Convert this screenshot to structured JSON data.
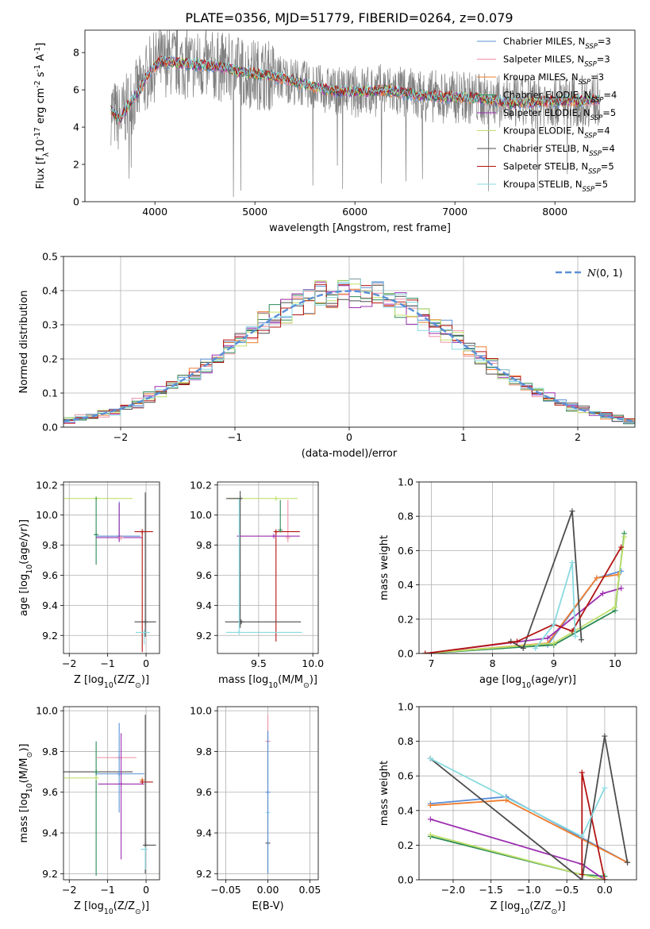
{
  "figure": {
    "title": "PLATE=0356, MJD=51779, FIBERID=0264, z=0.079"
  },
  "colors": {
    "Chabrier MILES": "#5a8fd6",
    "Salpeter MILES": "#ef8fa5",
    "Kroupa MILES": "#ee7d2f",
    "Chabrier ELODIE": "#2e8b57",
    "Salpeter ELODIE": "#9c2fb0",
    "Kroupa ELODIE": "#bfe06a",
    "Chabrier STELIB": "#4d4d4d",
    "Salpeter STELIB": "#b31414",
    "Kroupa STELIB": "#88dae0"
  },
  "chart_data": [
    {
      "id": "spectrum",
      "type": "line",
      "xlabel": "wavelength [Angstrom, rest frame]",
      "ylabel": "Flux [f$_\\lambda$10$^{-17}$ erg cm$^{-2}$ s$^{-1}$ A$^{-1}$]",
      "xlim": [
        3300,
        8800
      ],
      "ylim": [
        0,
        9.2
      ],
      "xticks": [
        4000,
        5000,
        6000,
        7000,
        8000
      ],
      "yticks": [
        0,
        2,
        4,
        6,
        8
      ],
      "grid": false,
      "legend_position": "upper right",
      "legend": [
        {
          "label": "Chabrier MILES, N",
          "sub": "SSP",
          "tail": "=3",
          "model": "Chabrier MILES"
        },
        {
          "label": "Salpeter MILES, N",
          "sub": "SSP",
          "tail": "=3",
          "model": "Salpeter MILES"
        },
        {
          "label": "Kroupa MILES, N",
          "sub": "SSP",
          "tail": "=3",
          "model": "Kroupa MILES"
        },
        {
          "label": "Chabrier ELODIE, N",
          "sub": "SSP",
          "tail": "=4",
          "model": "Chabrier ELODIE"
        },
        {
          "label": "Salpeter ELODIE, N",
          "sub": "SSP",
          "tail": "=5",
          "model": "Salpeter ELODIE"
        },
        {
          "label": "Kroupa ELODIE, N",
          "sub": "SSP",
          "tail": "=4",
          "model": "Kroupa ELODIE"
        },
        {
          "label": "Chabrier STELIB, N",
          "sub": "SSP",
          "tail": "=4",
          "model": "Chabrier STELIB"
        },
        {
          "label": "Salpeter STELIB, N",
          "sub": "SSP",
          "tail": "=5",
          "model": "Salpeter STELIB"
        },
        {
          "label": "Kroupa STELIB, N",
          "sub": "SSP",
          "tail": "=5",
          "model": "Kroupa STELIB"
        }
      ],
      "continuum": {
        "x": [
          3550,
          3650,
          3750,
          3850,
          3950,
          4050,
          4150,
          4300,
          4500,
          4700,
          4900,
          5100,
          5300,
          5500,
          5700,
          5900,
          6100,
          6300,
          6500,
          6700,
          6900,
          7100,
          7300,
          7500,
          7700,
          7900,
          8100,
          8300,
          8450
        ],
        "y": [
          5.0,
          4.4,
          5.3,
          6.0,
          7.0,
          7.5,
          7.5,
          7.4,
          7.3,
          7.2,
          6.9,
          6.8,
          6.6,
          6.3,
          6.0,
          5.9,
          5.9,
          6.0,
          5.8,
          5.7,
          5.6,
          5.6,
          5.5,
          5.3,
          5.3,
          5.4,
          5.4,
          5.4,
          5.5
        ]
      },
      "data_noise_amplitude": 1.6,
      "model_extent": [
        3560,
        8450
      ],
      "data_extent": [
        3560,
        8450
      ]
    },
    {
      "id": "residuals",
      "type": "histogram",
      "xlabel": "(data-model)/error",
      "ylabel": "Normed distribution",
      "xlim": [
        -2.5,
        2.5
      ],
      "ylim": [
        0,
        0.5
      ],
      "xticks": [
        -2,
        -1,
        0,
        1,
        2
      ],
      "yticks": [
        0.0,
        0.1,
        0.2,
        0.3,
        0.4,
        0.5
      ],
      "grid": true,
      "legend_position": "upper right",
      "reference": {
        "label": "N(0,1)",
        "mean": 0,
        "sigma": 1
      },
      "bin_width": 0.1,
      "bin_start": -2.5
    },
    {
      "id": "age-vs-Z",
      "type": "errorbar",
      "xlabel": "Z [log$_{10}$(Z/Z$_\\odot$)]",
      "ylabel": "age  [log$_{10}$(age/yr)]",
      "xlim": [
        -2.15,
        0.35
      ],
      "ylim": [
        9.08,
        10.22
      ],
      "xticks": [
        -2,
        -1,
        0
      ],
      "yticks": [
        9.2,
        9.4,
        9.6,
        9.8,
        10.0,
        10.2
      ],
      "grid": true,
      "points": [
        {
          "model": "Kroupa ELODIE",
          "x": -1.3,
          "xerr": [
            0.95,
            0.95
          ],
          "y": 10.11,
          "yerr": [
            0.0,
            0.0
          ]
        },
        {
          "model": "Chabrier ELODIE",
          "x": -1.3,
          "xerr": [
            0.0,
            0.0
          ],
          "y": 9.87,
          "yerr": [
            0.2,
            0.25
          ]
        },
        {
          "model": "Chabrier MILES",
          "x": -0.7,
          "xerr": [
            0.6,
            0.55
          ],
          "y": 9.86,
          "yerr": [
            0.03,
            0.23
          ]
        },
        {
          "model": "Salpeter ELODIE",
          "x": -0.7,
          "xerr": [
            0.6,
            0.6
          ],
          "y": 9.85,
          "yerr": [
            0.03,
            0.23
          ]
        },
        {
          "model": "Salpeter MILES",
          "x": -0.65,
          "xerr": [
            0.0,
            0.0
          ],
          "y": 9.85,
          "yerr": [
            0.0,
            0.0
          ]
        },
        {
          "model": "Chabrier STELIB",
          "x": -0.02,
          "xerr": [
            0.28,
            0.28
          ],
          "y": 9.29,
          "yerr": [
            0.1,
            0.86
          ]
        },
        {
          "model": "Salpeter STELIB",
          "x": -0.1,
          "xerr": [
            0.2,
            0.28
          ],
          "y": 9.89,
          "yerr": [
            0.8,
            0.0
          ]
        },
        {
          "model": "Kroupa STELIB",
          "x": -0.05,
          "xerr": [
            0.22,
            0.15
          ],
          "y": 9.22,
          "yerr": [
            0.08,
            0.0
          ]
        }
      ]
    },
    {
      "id": "age-vs-mass",
      "type": "errorbar",
      "xlabel": "mass [log$_{10}$(M/M$_\\odot$)]",
      "ylabel": "",
      "xlim": [
        9.12,
        10.05
      ],
      "ylim": [
        9.08,
        10.22
      ],
      "xticks": [
        9.5,
        10.0
      ],
      "yticks": [
        9.2,
        9.4,
        9.6,
        9.8,
        10.0,
        10.2
      ],
      "grid": true,
      "points": [
        {
          "model": "Kroupa ELODIE",
          "x": 9.66,
          "xerr": [
            0.44,
            0.2
          ],
          "y": 10.11,
          "yerr": [
            0.0,
            0.0
          ]
        },
        {
          "model": "Chabrier STELIB",
          "x": 9.33,
          "xerr": [
            0.13,
            0.0
          ],
          "y": 10.11,
          "yerr": [
            0.86,
            0.05
          ]
        },
        {
          "model": "Salpeter MILES",
          "x": 9.77,
          "xerr": [
            0.0,
            0.0
          ],
          "y": 9.85,
          "yerr": [
            0.03,
            0.25
          ]
        },
        {
          "model": "Salpeter STELIB",
          "x": 9.66,
          "xerr": [
            0.0,
            0.22
          ],
          "y": 9.89,
          "yerr": [
            0.73,
            0.0
          ]
        },
        {
          "model": "Salpeter ELODIE",
          "x": 9.64,
          "xerr": [
            0.34,
            0.24
          ],
          "y": 9.86,
          "yerr": [
            0.0,
            0.0
          ]
        },
        {
          "model": "Chabrier ELODIE",
          "x": 9.7,
          "xerr": [
            0.0,
            0.0
          ],
          "y": 9.9,
          "yerr": [
            0.0,
            0.2
          ]
        },
        {
          "model": "Chabrier STELIB",
          "x": 9.34,
          "xerr": [
            0.15,
            0.55
          ],
          "y": 9.29,
          "yerr": [
            0.0,
            0.0
          ]
        },
        {
          "model": "Kroupa STELIB",
          "x": 9.32,
          "xerr": [
            0.12,
            0.58
          ],
          "y": 9.22,
          "yerr": [
            0.0,
            0.89
          ]
        }
      ]
    },
    {
      "id": "weight-vs-age",
      "type": "line",
      "xlabel": "age  [log$_{10}$(age/yr)]",
      "ylabel": "mass weight",
      "xlim": [
        6.8,
        10.35
      ],
      "ylim": [
        0,
        1.0
      ],
      "xticks": [
        7,
        8,
        9,
        10
      ],
      "yticks": [
        0.0,
        0.2,
        0.4,
        0.6,
        0.8,
        1.0
      ],
      "grid": true,
      "series": [
        {
          "model": "Chabrier MILES",
          "x": [
            6.9,
            8.9,
            9.7,
            10.1
          ],
          "y": [
            0.0,
            0.05,
            0.44,
            0.48
          ]
        },
        {
          "model": "Kroupa MILES",
          "x": [
            6.9,
            8.9,
            9.7,
            10.05
          ],
          "y": [
            0.0,
            0.06,
            0.44,
            0.46
          ]
        },
        {
          "model": "Chabrier ELODIE",
          "x": [
            6.9,
            9.0,
            10.0,
            10.15
          ],
          "y": [
            0.0,
            0.05,
            0.25,
            0.7
          ]
        },
        {
          "model": "Salpeter ELODIE",
          "x": [
            6.9,
            8.9,
            9.8,
            10.1
          ],
          "y": [
            0.0,
            0.09,
            0.35,
            0.38
          ]
        },
        {
          "model": "Kroupa ELODIE",
          "x": [
            6.9,
            9.0,
            10.0,
            10.15
          ],
          "y": [
            0.0,
            0.06,
            0.27,
            0.68
          ]
        },
        {
          "model": "Chabrier STELIB",
          "x": [
            8.3,
            8.5,
            9.3,
            9.45
          ],
          "y": [
            0.07,
            0.03,
            0.83,
            0.08
          ]
        },
        {
          "model": "Salpeter STELIB",
          "x": [
            6.9,
            8.4,
            9.0,
            9.3,
            10.1
          ],
          "y": [
            0.0,
            0.07,
            0.17,
            0.13,
            0.62
          ]
        },
        {
          "model": "Kroupa STELIB",
          "x": [
            8.7,
            9.0,
            9.3,
            9.35
          ],
          "y": [
            0.03,
            0.17,
            0.53,
            0.1
          ]
        }
      ]
    },
    {
      "id": "mass-vs-Z",
      "type": "errorbar",
      "xlabel": "Z [log$_{10}$(Z/Z$_\\odot$)]",
      "ylabel": "mass [log$_{10}$(M/M$_\\odot$)]",
      "xlim": [
        -2.15,
        0.35
      ],
      "ylim": [
        9.17,
        10.02
      ],
      "xticks": [
        -2,
        -1,
        0
      ],
      "yticks": [
        9.2,
        9.4,
        9.6,
        9.8,
        10.0
      ],
      "grid": true,
      "points": [
        {
          "model": "Chabrier STELIB",
          "x": -1.3,
          "xerr": [
            0.95,
            0.95
          ],
          "y": 9.7,
          "yerr": [
            0.0,
            0.0
          ]
        },
        {
          "model": "Chabrier ELODIE",
          "x": -1.3,
          "xerr": [
            0.0,
            0.0
          ],
          "y": 9.7,
          "yerr": [
            0.51,
            0.15
          ]
        },
        {
          "model": "Kroupa ELODIE",
          "x": -1.3,
          "xerr": [
            0.95,
            0.0
          ],
          "y": 9.67,
          "yerr": [
            0.0,
            0.0
          ]
        },
        {
          "model": "Salpeter MILES",
          "x": -0.7,
          "xerr": [
            0.6,
            0.45
          ],
          "y": 9.77,
          "yerr": [
            0.0,
            0.0
          ]
        },
        {
          "model": "Chabrier MILES",
          "x": -0.7,
          "xerr": [
            0.6,
            0.65
          ],
          "y": 9.69,
          "yerr": [
            0.19,
            0.25
          ]
        },
        {
          "model": "Salpeter ELODIE",
          "x": -0.65,
          "xerr": [
            0.6,
            0.6
          ],
          "y": 9.64,
          "yerr": [
            0.37,
            0.25
          ]
        },
        {
          "model": "Kroupa MILES",
          "x": -0.1,
          "xerr": [
            0.0,
            0.0
          ],
          "y": 9.66,
          "yerr": [
            0.0,
            0.0
          ]
        },
        {
          "model": "Salpeter STELIB",
          "x": -0.1,
          "xerr": [
            0.0,
            0.28
          ],
          "y": 9.65,
          "yerr": [
            0.0,
            0.0
          ]
        },
        {
          "model": "Chabrier STELIB",
          "x": -0.02,
          "xerr": [
            0.0,
            0.28
          ],
          "y": 9.34,
          "yerr": [
            0.14,
            0.64
          ]
        },
        {
          "model": "Kroupa STELIB",
          "x": -0.02,
          "xerr": [
            0.12,
            0.0
          ],
          "y": 9.32,
          "yerr": [
            0.1,
            0.0
          ]
        }
      ]
    },
    {
      "id": "mass-vs-ebv",
      "type": "errorbar",
      "xlabel": "E(B-V)",
      "ylabel": "",
      "xlim": [
        -0.06,
        0.06
      ],
      "ylim": [
        9.17,
        10.02
      ],
      "xticks": [
        -0.05,
        0.0,
        0.05
      ],
      "yticks": [
        9.2,
        9.4,
        9.6,
        9.8,
        10.0
      ],
      "grid": true,
      "points": [
        {
          "model": "Salpeter MILES",
          "x": 0.0,
          "xerr": [
            0.0,
            0.0
          ],
          "y": 9.85,
          "yerr": [
            0.0,
            0.13
          ]
        },
        {
          "model": "Chabrier STELIB",
          "x": 0.0,
          "xerr": [
            0.0,
            0.0
          ],
          "y": 9.35,
          "yerr": [
            0.15,
            0.55
          ]
        },
        {
          "model": "Kroupa STELIB",
          "x": 0.0,
          "xerr": [
            0.0,
            0.0
          ],
          "y": 9.5,
          "yerr": [
            0.3,
            0.4
          ]
        },
        {
          "model": "Chabrier MILES",
          "x": 0.0,
          "xerr": [
            0.0,
            0.0
          ],
          "y": 9.6,
          "yerr": [
            0.4,
            0.3
          ]
        }
      ]
    },
    {
      "id": "weight-vs-Z",
      "type": "line",
      "xlabel": "Z [log$_{10}$(Z/Z$_\\odot$)]",
      "ylabel": "mass weight",
      "xlim": [
        -2.45,
        0.42
      ],
      "ylim": [
        0,
        1.0
      ],
      "xticks": [
        -2.0,
        -1.5,
        -1.0,
        -0.5,
        0.0
      ],
      "yticks": [
        0.0,
        0.2,
        0.4,
        0.6,
        0.8,
        1.0
      ],
      "grid": true,
      "series": [
        {
          "model": "Chabrier MILES",
          "x": [
            -2.3,
            -1.3,
            0.3
          ],
          "y": [
            0.44,
            0.48,
            0.1
          ]
        },
        {
          "model": "Kroupa MILES",
          "x": [
            -2.3,
            -1.3,
            0.3
          ],
          "y": [
            0.43,
            0.46,
            0.1
          ]
        },
        {
          "model": "Chabrier ELODIE",
          "x": [
            -2.3,
            -0.3,
            0.0
          ],
          "y": [
            0.25,
            0.03,
            0.02
          ]
        },
        {
          "model": "Salpeter ELODIE",
          "x": [
            -2.3,
            -0.3,
            0.0
          ],
          "y": [
            0.35,
            0.09,
            0.0
          ]
        },
        {
          "model": "Kroupa ELODIE",
          "x": [
            -2.3,
            -0.3,
            0.0
          ],
          "y": [
            0.26,
            0.03,
            0.0
          ]
        },
        {
          "model": "Chabrier STELIB",
          "x": [
            -2.3,
            -0.3,
            0.0,
            0.3
          ],
          "y": [
            0.7,
            0.0,
            0.83,
            0.1
          ]
        },
        {
          "model": "Salpeter STELIB",
          "x": [
            -0.3,
            -0.3,
            0.0
          ],
          "y": [
            0.03,
            0.62,
            0.0
          ]
        },
        {
          "model": "Kroupa STELIB",
          "x": [
            -2.3,
            -0.3,
            0.0
          ],
          "y": [
            0.7,
            0.25,
            0.53
          ]
        }
      ]
    }
  ]
}
